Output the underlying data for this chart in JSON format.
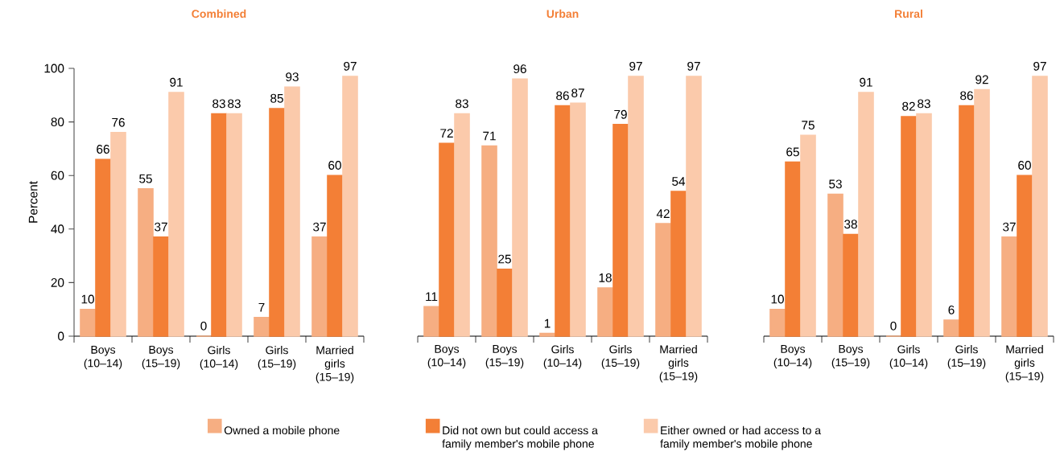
{
  "chart_data": [
    {
      "type": "bar",
      "title": "Combined",
      "ylabel": "Percent",
      "categories": [
        "Boys (10–14)",
        "Boys (15–19)",
        "Girls (10–14)",
        "Girls (15–19)",
        "Married girls (15–19)"
      ],
      "ylim": [
        0,
        100
      ],
      "yticks": [
        0,
        20,
        40,
        60,
        80,
        100
      ],
      "data_labels": true,
      "legend": "bottom",
      "series": [
        {
          "name": "Owned a mobile phone",
          "color": "#f6ae82",
          "values": [
            10,
            55,
            0,
            7,
            37
          ]
        },
        {
          "name": "Did not own but could access a family member's mobile phone",
          "color": "#f37f36",
          "values": [
            66,
            37,
            83,
            85,
            60
          ]
        },
        {
          "name": "Either owned or had access to a family member's mobile phone",
          "color": "#fbcaab",
          "values": [
            76,
            91,
            83,
            93,
            97
          ]
        }
      ]
    },
    {
      "type": "bar",
      "title": "Urban",
      "categories": [
        "Boys (10–14)",
        "Boys (15–19)",
        "Girls (10–14)",
        "Girls (15–19)",
        "Married girls (15–19)"
      ],
      "ylim": [
        0,
        100
      ],
      "yticks": [
        0,
        20,
        40,
        60,
        80,
        100
      ],
      "tick_labels": "x",
      "data_labels": true,
      "series": [
        {
          "color": "#f6ae82",
          "values": [
            11,
            71,
            1,
            18,
            42
          ]
        },
        {
          "color": "#f37f36",
          "values": [
            72,
            25,
            86,
            79,
            54
          ]
        },
        {
          "color": "#fbcaab",
          "values": [
            83,
            96,
            87,
            97,
            97
          ]
        }
      ]
    },
    {
      "type": "bar",
      "title": "Rural",
      "categories": [
        "Boys (10–14)",
        "Boys (15–19)",
        "Girls (10–14)",
        "Girls (15–19)",
        "Married girls (15–19)"
      ],
      "ylim": [
        0,
        100
      ],
      "yticks": [
        0,
        20,
        40,
        60,
        80,
        100
      ],
      "tick_labels": "x",
      "data_labels": true,
      "series": [
        {
          "color": "#f6ae82",
          "values": [
            10,
            53,
            0,
            6,
            37
          ]
        },
        {
          "color": "#f37f36",
          "values": [
            65,
            38,
            82,
            86,
            60
          ]
        },
        {
          "color": "#fbcaab",
          "values": [
            75,
            91,
            83,
            92,
            97
          ]
        }
      ]
    }
  ]
}
